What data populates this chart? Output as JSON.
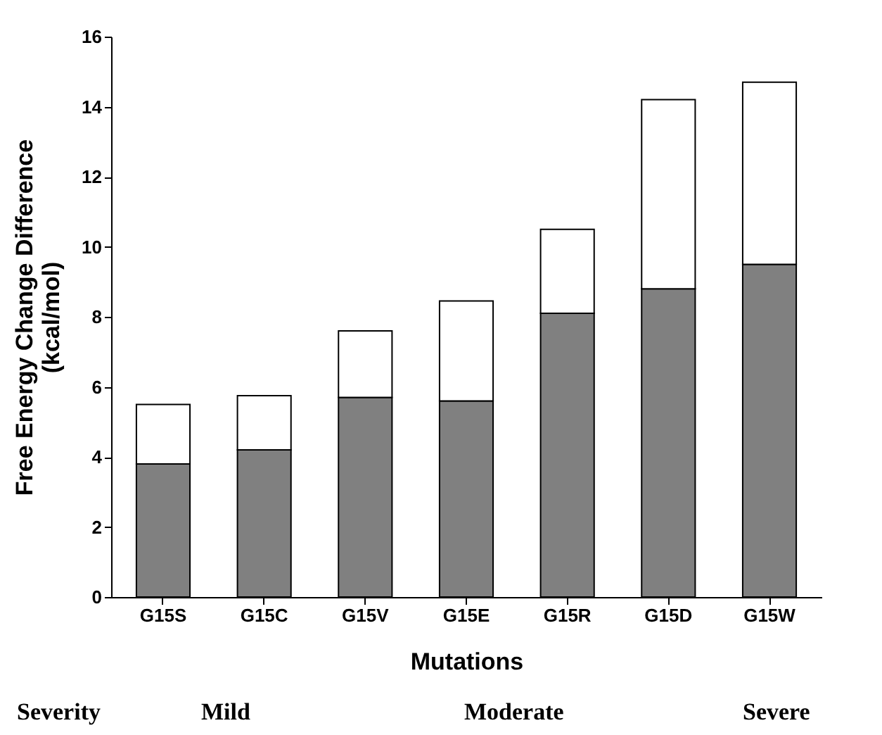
{
  "chart_data": {
    "type": "bar",
    "stacked": true,
    "xlabel": "Mutations",
    "ylabel": "Free Energy Change Difference\n(kcal/mol)",
    "categories": [
      "G15S",
      "G15C",
      "G15V",
      "G15E",
      "G15R",
      "G15D",
      "G15W"
    ],
    "series": [
      {
        "color": "#808080",
        "values": [
          3.8,
          4.2,
          5.7,
          5.6,
          8.1,
          8.8,
          9.5
        ]
      },
      {
        "color": "#ffffff",
        "values": [
          1.7,
          1.55,
          1.9,
          2.85,
          2.4,
          5.4,
          5.2
        ]
      }
    ],
    "ylim": [
      0,
      16
    ],
    "yticks": [
      0,
      2,
      4,
      6,
      8,
      10,
      12,
      14,
      16
    ],
    "grid": false,
    "legend": false,
    "annotations": [
      "Severity",
      "Mild",
      "Moderate",
      "Severe"
    ]
  }
}
